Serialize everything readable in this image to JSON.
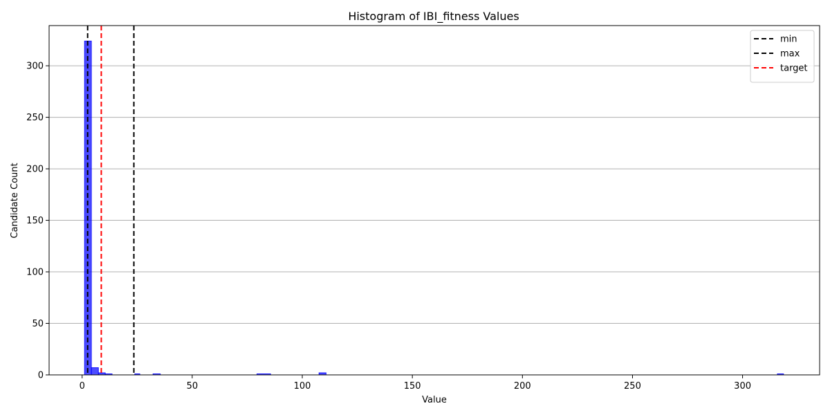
{
  "chart_data": {
    "type": "bar",
    "title": "Histogram of IBI_fitness Values",
    "xlabel": "Value",
    "ylabel": "Candidate Count",
    "xlim": [
      -15,
      335
    ],
    "ylim": [
      0,
      339
    ],
    "xticks": [
      0,
      50,
      100,
      150,
      200,
      250,
      300
    ],
    "yticks": [
      0,
      50,
      100,
      150,
      200,
      250,
      300
    ],
    "grid": "y",
    "bar_color": "#0000ff",
    "bins": [
      {
        "x0": 1.1,
        "x1": 4.2,
        "count": 324
      },
      {
        "x0": 4.2,
        "x1": 7.4,
        "count": 7
      },
      {
        "x0": 7.4,
        "x1": 10.5,
        "count": 2
      },
      {
        "x0": 10.5,
        "x1": 13.6,
        "count": 1
      },
      {
        "x0": 23.9,
        "x1": 26.2,
        "count": 1
      },
      {
        "x0": 32.2,
        "x1": 35.5,
        "count": 1
      },
      {
        "x0": 79.4,
        "x1": 85.6,
        "count": 1
      },
      {
        "x0": 107.6,
        "x1": 110.8,
        "count": 2
      },
      {
        "x0": 315.8,
        "x1": 318.6,
        "count": 1
      }
    ],
    "lines": [
      {
        "name": "min",
        "x": 2.5,
        "color": "#000000"
      },
      {
        "name": "max",
        "x": 23.5,
        "color": "#000000"
      },
      {
        "name": "target",
        "x": 8.7,
        "color": "#ff0000"
      }
    ],
    "legend_position": "top-right"
  }
}
